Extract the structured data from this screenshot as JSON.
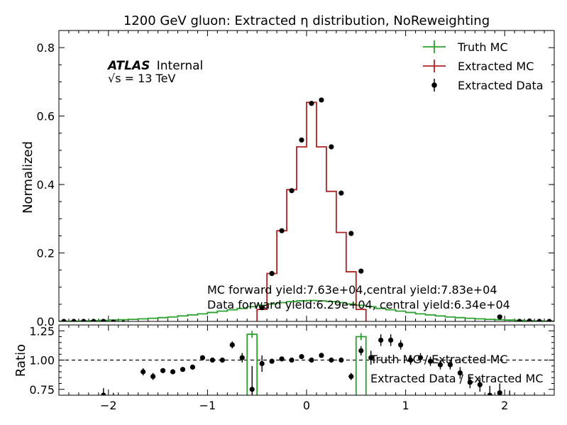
{
  "chart_data": [
    {
      "type": "line",
      "title": "1200 GeV gluon: Extracted η distribution, NoReweighting",
      "ylabel": "Normalized",
      "xlim": [
        -2.5,
        2.5
      ],
      "ylim": [
        0,
        0.85
      ],
      "yticks": [
        "0.0",
        "0.2",
        "0.4",
        "0.6",
        "0.8"
      ],
      "atlas_label": "ATLAS",
      "atlas_sublabel": "Internal",
      "energy_label": "√s =  13 TeV",
      "legend_position": "top-right",
      "legend": [
        {
          "label": "Truth MC",
          "color": "#2ca02c"
        },
        {
          "label": "Extracted MC",
          "color": "#b22222"
        },
        {
          "label": "Extracted Data",
          "color": "#000000"
        }
      ],
      "annotations": [
        "MC forward yield:7.63e+04,central yield:7.83e+04",
        "Data forward yield:6.29e+04, central yield:6.34e+04"
      ],
      "series": [
        {
          "name": "Truth MC",
          "color": "#2ca02c",
          "bin_edges": [
            -2.5,
            -2.4,
            -2.3,
            -2.2,
            -2.1,
            -2.0,
            -1.9,
            -1.8,
            -1.7,
            -1.6,
            -1.5,
            -1.4,
            -1.3,
            -1.2,
            -1.1,
            -1.0,
            -0.9,
            -0.8,
            -0.7,
            -0.6,
            -0.5,
            -0.4,
            -0.3,
            -0.2,
            -0.1,
            0.0,
            0.1,
            0.2,
            0.3,
            0.4,
            0.5,
            0.6,
            0.7,
            0.8,
            0.9,
            1.0,
            1.1,
            1.2,
            1.3,
            1.4,
            1.5,
            1.6,
            1.7,
            1.8,
            1.9,
            2.0,
            2.1,
            2.2,
            2.3,
            2.4,
            2.5
          ],
          "values": [
            0.0005,
            0.001,
            0.0015,
            0.002,
            0.003,
            0.004,
            0.005,
            0.006,
            0.0075,
            0.009,
            0.011,
            0.013,
            0.016,
            0.019,
            0.022,
            0.026,
            0.03,
            0.034,
            0.038,
            0.043,
            0.047,
            0.051,
            0.055,
            0.058,
            0.06,
            0.061,
            0.06,
            0.058,
            0.055,
            0.051,
            0.047,
            0.043,
            0.038,
            0.034,
            0.03,
            0.026,
            0.022,
            0.019,
            0.016,
            0.013,
            0.011,
            0.009,
            0.0075,
            0.006,
            0.005,
            0.004,
            0.003,
            0.002,
            0.0015,
            0.001
          ]
        },
        {
          "name": "Extracted MC",
          "color": "#b22222",
          "bin_edges": [
            -0.5,
            -0.4,
            -0.3,
            -0.2,
            -0.1,
            0.0,
            0.1,
            0.2,
            0.3,
            0.4,
            0.5,
            0.6
          ],
          "values": [
            0.035,
            0.14,
            0.265,
            0.385,
            0.51,
            0.64,
            0.51,
            0.38,
            0.26,
            0.145,
            0.035
          ]
        },
        {
          "name": "Extracted Data",
          "color": "#000000",
          "x": [
            -2.45,
            -2.35,
            -2.25,
            -2.15,
            -2.05,
            -1.95,
            -1.85,
            -0.45,
            -0.35,
            -0.25,
            -0.15,
            -0.05,
            0.05,
            0.15,
            0.25,
            0.35,
            0.45,
            0.55,
            1.95,
            2.05,
            2.15,
            2.25,
            2.35,
            2.45
          ],
          "y": [
            0.0,
            0.0,
            0.0,
            0.0,
            0.0,
            -0.002,
            -0.004,
            0.04,
            0.14,
            0.265,
            0.382,
            0.53,
            0.637,
            0.647,
            0.51,
            0.375,
            0.257,
            0.147,
            0.013,
            -0.006,
            0.0,
            0.001,
            0.0,
            0.0
          ],
          "yerr": [
            0.002,
            0.002,
            0.002,
            0.002,
            0.002,
            0.003,
            0.003,
            0.004,
            0.005,
            0.005,
            0.005,
            0.006,
            0.006,
            0.006,
            0.005,
            0.005,
            0.005,
            0.004,
            0.003,
            0.002,
            0.002,
            0.002,
            0.002,
            0.002
          ]
        }
      ]
    },
    {
      "type": "scatter",
      "ylabel": "Ratio",
      "xlabel": "",
      "xlim": [
        -2.5,
        2.5
      ],
      "ylim": [
        0.7,
        1.3
      ],
      "xticks": [
        "−2",
        "−1",
        "0",
        "1",
        "2"
      ],
      "yticks": [
        "0.75",
        "1.00",
        "1.25"
      ],
      "reference_line": 1.0,
      "legend_position": "right",
      "legend": [
        {
          "label": "Truth MC / Extracted MC",
          "color": "#2ca02c"
        },
        {
          "label": "Extracted Data / Extracted MC",
          "color": "#000000"
        }
      ],
      "series": [
        {
          "name": "Truth MC / Extracted MC",
          "color": "#2ca02c",
          "bars": [
            {
              "x0": -0.6,
              "x1": -0.5,
              "value": 1.22,
              "err": 0.03
            },
            {
              "x0": 0.5,
              "x1": 0.6,
              "value": 1.2,
              "err": 0.03
            }
          ]
        },
        {
          "name": "Extracted Data / Extracted MC",
          "color": "#000000",
          "x": [
            -2.05,
            -1.95,
            -1.85,
            -1.65,
            -1.55,
            -1.45,
            -1.35,
            -1.25,
            -1.15,
            -1.05,
            -0.95,
            -0.85,
            -0.75,
            -0.65,
            -0.55,
            -0.45,
            -0.35,
            -0.25,
            -0.15,
            -0.05,
            0.05,
            0.15,
            0.25,
            0.35,
            0.45,
            0.55,
            0.65,
            0.75,
            0.85,
            0.95,
            1.05,
            1.15,
            1.25,
            1.35,
            1.45,
            1.55,
            1.65,
            1.75,
            1.85,
            1.95,
            2.05
          ],
          "y": [
            0.7,
            0.67,
            0.65,
            0.9,
            0.86,
            0.91,
            0.9,
            0.92,
            0.94,
            1.02,
            1.0,
            1.0,
            1.13,
            1.02,
            0.75,
            0.97,
            0.99,
            1.01,
            1.0,
            1.03,
            1.0,
            1.04,
            1.0,
            1.0,
            0.86,
            1.08,
            1.02,
            1.17,
            1.17,
            1.13,
            1.0,
            1.02,
            0.99,
            0.96,
            0.96,
            0.89,
            0.81,
            0.79,
            0.7,
            0.72,
            0.64
          ],
          "yerr": [
            0.06,
            0.05,
            0.05,
            0.03,
            0.03,
            0.02,
            0.02,
            0.02,
            0.02,
            0.02,
            0.02,
            0.02,
            0.03,
            0.04,
            0.2,
            0.07,
            0.02,
            0.02,
            0.01,
            0.01,
            0.01,
            0.01,
            0.01,
            0.02,
            0.03,
            0.04,
            0.06,
            0.05,
            0.05,
            0.04,
            0.04,
            0.04,
            0.04,
            0.04,
            0.04,
            0.05,
            0.05,
            0.06,
            0.08,
            0.08,
            0.1
          ]
        }
      ]
    }
  ]
}
